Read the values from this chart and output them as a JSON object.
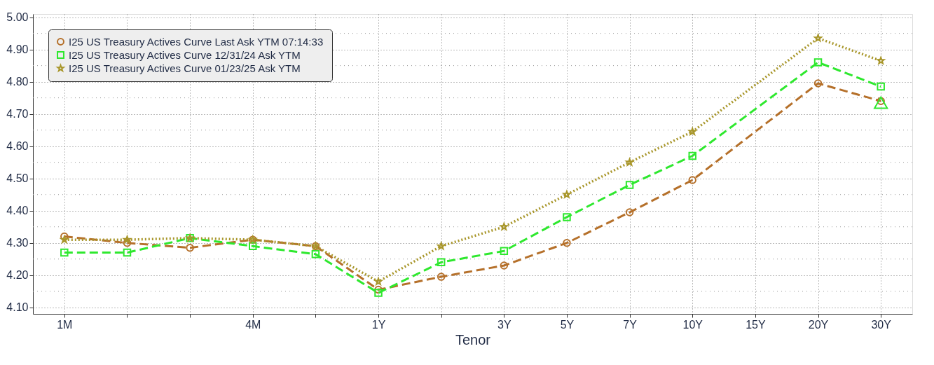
{
  "chart_data": {
    "type": "line",
    "xlabel": "Tenor",
    "categories": [
      "1M",
      null,
      null,
      "4M",
      null,
      "1Y",
      null,
      "3Y",
      "5Y",
      "7Y",
      "10Y",
      "15Y",
      "20Y",
      "30Y"
    ],
    "ylim": [
      4.08,
      5.01
    ],
    "yticks": [
      {
        "value": 4.1,
        "label": "4.10"
      },
      {
        "value": 4.15,
        "label": null
      },
      {
        "value": 4.2,
        "label": "4.20"
      },
      {
        "value": 4.25,
        "label": null
      },
      {
        "value": 4.3,
        "label": "4.30"
      },
      {
        "value": 4.35,
        "label": null
      },
      {
        "value": 4.4,
        "label": "4.40"
      },
      {
        "value": 4.45,
        "label": null
      },
      {
        "value": 4.5,
        "label": "4.50"
      },
      {
        "value": 4.55,
        "label": null
      },
      {
        "value": 4.6,
        "label": "4.60"
      },
      {
        "value": 4.65,
        "label": null
      },
      {
        "value": 4.7,
        "label": "4.70"
      },
      {
        "value": 4.75,
        "label": null
      },
      {
        "value": 4.8,
        "label": "4.80"
      },
      {
        "value": 4.85,
        "label": null
      },
      {
        "value": 4.9,
        "label": "4.90"
      },
      {
        "value": 4.95,
        "label": null
      },
      {
        "value": 5.0,
        "label": "5.00"
      }
    ],
    "grid": true,
    "legend": "top left",
    "series": [
      {
        "name": "I25 US Treasury Actives Curve Last Ask YTM 07:14:33",
        "color": "#b5702a",
        "marker": "circle",
        "line_style": "dashed",
        "values": [
          4.32,
          4.3,
          4.285,
          4.31,
          4.29,
          4.155,
          4.195,
          4.23,
          4.3,
          4.395,
          4.495,
          null,
          4.795,
          4.74
        ]
      },
      {
        "name": "I25 US Treasury Actives Curve 12/31/24 Ask YTM",
        "color": "#2ee82e",
        "marker": "square",
        "line_style": "dashed",
        "values": [
          4.27,
          4.27,
          4.315,
          4.29,
          4.265,
          4.145,
          4.24,
          4.275,
          4.38,
          4.48,
          4.57,
          null,
          4.86,
          4.785
        ]
      },
      {
        "name": "I25 US Treasury Actives Curve 01/23/25 Ask YTM",
        "color": "#a8962a",
        "marker": "star",
        "line_style": "dotted",
        "values": [
          4.31,
          4.31,
          4.315,
          4.31,
          4.29,
          4.18,
          4.29,
          4.35,
          4.45,
          4.55,
          4.645,
          null,
          4.935,
          4.865
        ]
      },
      {
        "type": "scatter",
        "color": "#2ee82e",
        "marker": "triangle",
        "values": [
          null,
          null,
          null,
          null,
          null,
          null,
          null,
          null,
          null,
          null,
          null,
          null,
          null,
          4.735
        ]
      }
    ]
  }
}
